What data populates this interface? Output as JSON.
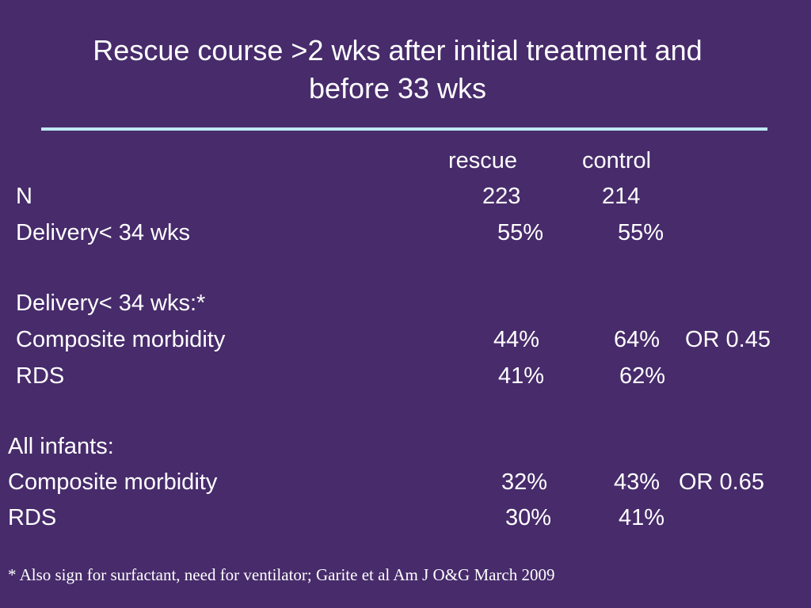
{
  "slide": {
    "title_line1": "Rescue course >2 wks after initial treatment and",
    "title_line2": "before 33 wks",
    "header": {
      "rescue": "rescue",
      "control": "control"
    },
    "rows": [
      {
        "label": "N",
        "rescue": "223",
        "control": "214",
        "extra": ""
      },
      {
        "label": "Delivery< 34 wks",
        "rescue": "55%",
        "control": "55%",
        "extra": ""
      },
      {
        "label": "Delivery< 34 wks:*",
        "rescue": "",
        "control": "",
        "extra": ""
      },
      {
        "label": "Composite morbidity",
        "rescue": "44%",
        "control": "64%",
        "extra": "OR 0.45"
      },
      {
        "label": "RDS",
        "rescue": "41%",
        "control": "62%",
        "extra": ""
      },
      {
        "label": "All infants:",
        "rescue": "",
        "control": "",
        "extra": ""
      },
      {
        "label": "Composite morbidity",
        "rescue": "32%",
        "control": "43%",
        "extra": "OR 0.65"
      },
      {
        "label": "RDS",
        "rescue": "30%",
        "control": "41%",
        "extra": ""
      }
    ],
    "footnote": "* Also sign for surfactant, need for ventilator; Garite et al Am J O&G March 2009"
  },
  "colors": {
    "background": "#472b6b",
    "text": "#ffffff",
    "rule": "#bfe8f2"
  }
}
